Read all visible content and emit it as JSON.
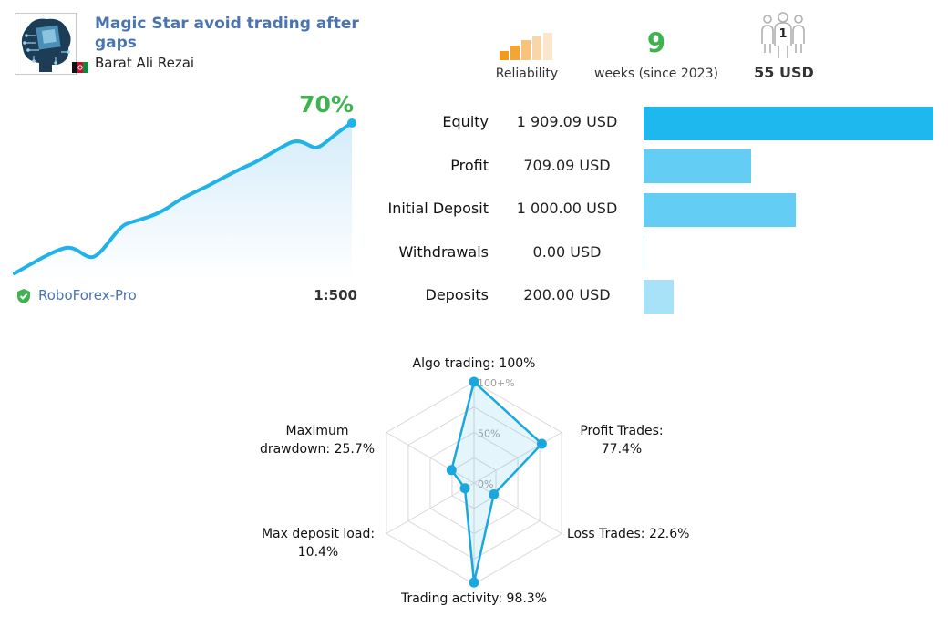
{
  "header": {
    "title": "Magic Star avoid trading after gaps",
    "author": "Barat Ali Rezai",
    "avatar_icon": "brain-circuit-icon",
    "flag_icon": "afghanistan-flag-icon"
  },
  "summary": {
    "reliability_label": "Reliability",
    "reliability_icon": "reliability-bars-icon",
    "weeks_value": "9",
    "weeks_label": "weeks (since 2023)",
    "subscribers_count": "1",
    "subscribers_icon": "subscribers-icon",
    "price": "55 USD"
  },
  "growth": {
    "percent": "70%",
    "broker": "RoboForex-Pro",
    "leverage": "1:500"
  },
  "stats": [
    {
      "label": "Equity",
      "value": "1 909.09 USD",
      "amount": 1909.09,
      "color": "#1fb8ee"
    },
    {
      "label": "Profit",
      "value": "709.09 USD",
      "amount": 709.09,
      "color": "#63cdf4"
    },
    {
      "label": "Initial Deposit",
      "value": "1 000.00 USD",
      "amount": 1000.0,
      "color": "#63cdf4"
    },
    {
      "label": "Withdrawals",
      "value": "0.00 USD",
      "amount": 0,
      "color": "#a8e2f8"
    },
    {
      "label": "Deposits",
      "value": "200.00 USD",
      "amount": 200.0,
      "color": "#a8e2f8"
    }
  ],
  "chart_data": {
    "type": "radar",
    "scale_labels": [
      "100+%",
      "50%",
      "0%"
    ],
    "axes": [
      {
        "label": "Algo trading: 100%",
        "value": 100
      },
      {
        "label": "Profit Trades: 77.4%",
        "value": 77.4
      },
      {
        "label": "Loss Trades: 22.6%",
        "value": 22.6
      },
      {
        "label": "Trading activity: 98.3%",
        "value": 98.3
      },
      {
        "label": "Max deposit load: 10.4%",
        "value": 10.4
      },
      {
        "label": "Maximum drawdown: 25.7%",
        "value": 25.7
      }
    ],
    "label_lines": {
      "a0": "Algo trading: 100%",
      "a1l1": "Profit Trades:",
      "a1l2": "77.4%",
      "a2": "Loss Trades: 22.6%",
      "a3": "Trading activity: 98.3%",
      "a4l1": "Max deposit load:",
      "a4l2": "10.4%",
      "a5l1": "Maximum",
      "a5l2": "drawdown: 25.7%"
    },
    "line_color": "#1aa7e0"
  }
}
